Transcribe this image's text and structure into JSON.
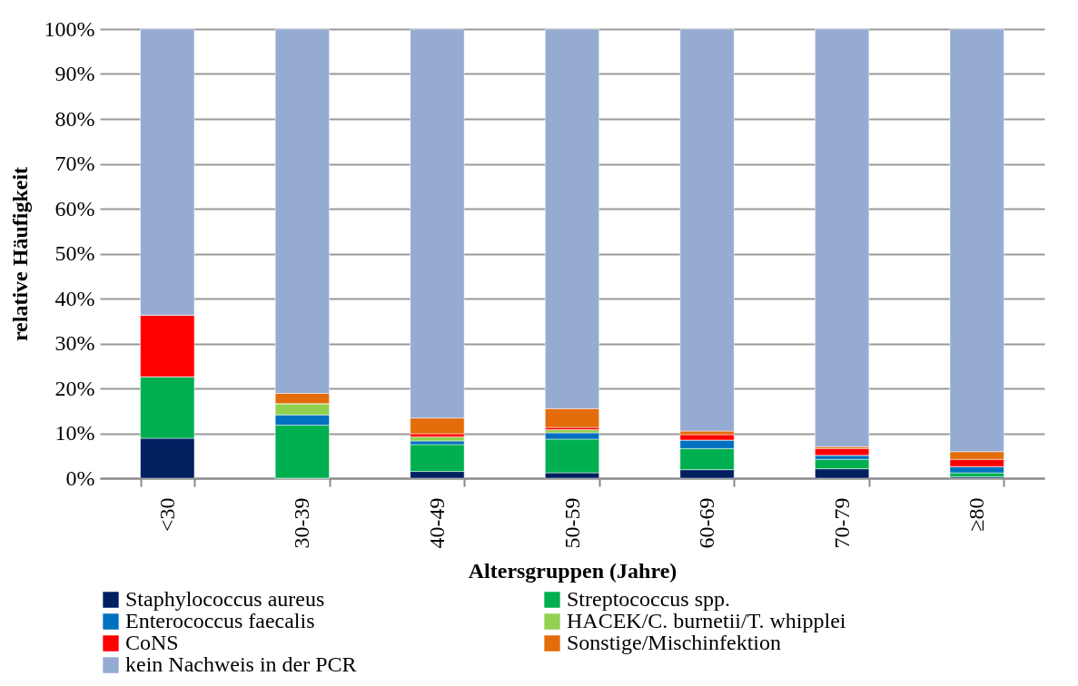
{
  "chart_data": {
    "type": "bar",
    "stacked": true,
    "xlabel": "Altersgruppen (Jahre)",
    "ylabel": "relative Häufigkeit",
    "categories": [
      "<30",
      "30-39",
      "40-49",
      "50-59",
      "60-69",
      "70-79",
      "≥80"
    ],
    "series": [
      {
        "name": "Staphylococcus aureus",
        "color": "#002060",
        "values": [
          8.9,
          0,
          1.5,
          1.2,
          1.9,
          2.1,
          0.3
        ]
      },
      {
        "name": "Streptococcus spp.",
        "color": "#00b050",
        "values": [
          13.7,
          11.8,
          6.0,
          7.5,
          4.7,
          2.1,
          0.9
        ]
      },
      {
        "name": "Enterococcus faecalis",
        "color": "#0070c0",
        "values": [
          0,
          2.3,
          0.8,
          1.4,
          1.9,
          0.9,
          1.4
        ]
      },
      {
        "name": "HACEK/C. burnetii/T. whipplei",
        "color": "#92d050",
        "values": [
          0,
          2.5,
          0.9,
          0.7,
          0,
          0,
          0
        ]
      },
      {
        "name": "CoNS",
        "color": "#ff0000",
        "values": [
          13.7,
          0,
          0.7,
          0.5,
          1.2,
          1.5,
          1.6
        ]
      },
      {
        "name": "Sonstige/Mischinfektion",
        "color": "#e46c0a",
        "values": [
          0,
          2.3,
          3.5,
          4.2,
          0.8,
          0.4,
          1.7
        ]
      },
      {
        "name": "kein Nachweis in der PCR",
        "color": "#95abd2",
        "values": [
          63.7,
          81.1,
          86.6,
          84.5,
          89.5,
          93.0,
          94.1
        ]
      }
    ],
    "ylim": [
      0,
      100
    ],
    "yticks": [
      {
        "value": 0,
        "label": "0%"
      },
      {
        "value": 10,
        "label": "10%"
      },
      {
        "value": 20,
        "label": "20%"
      },
      {
        "value": 30,
        "label": "30%"
      },
      {
        "value": 40,
        "label": "40%"
      },
      {
        "value": 50,
        "label": "50%"
      },
      {
        "value": 60,
        "label": "60%"
      },
      {
        "value": 70,
        "label": "70%"
      },
      {
        "value": 80,
        "label": "80%"
      },
      {
        "value": 90,
        "label": "90%"
      },
      {
        "value": 100,
        "label": "100%"
      }
    ],
    "grid": "y",
    "legend": "bottom"
  }
}
